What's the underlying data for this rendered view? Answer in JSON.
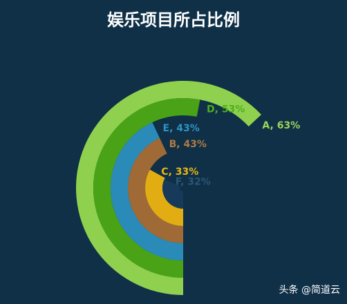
{
  "chart_data": {
    "type": "radial-bar",
    "title": "娱乐项目所占比例",
    "categories": [
      "A",
      "D",
      "E",
      "B",
      "C",
      "F"
    ],
    "values": [
      63,
      53,
      43,
      43,
      33,
      32
    ],
    "value_labels": [
      "A, 63%",
      "D, 53%",
      "E, 43%",
      "B, 43%",
      "C, 33%",
      "F, 32%"
    ],
    "colors": [
      "#8fd14f",
      "#4aa317",
      "#2a8bb8",
      "#a06a37",
      "#e2ad13",
      "#17395a"
    ],
    "label_colors": [
      "#9ad65a",
      "#4fae1c",
      "#2e94c4",
      "#b07a45",
      "#e8b71a",
      "#2c5577"
    ]
  },
  "watermark": "头条 @简道云"
}
